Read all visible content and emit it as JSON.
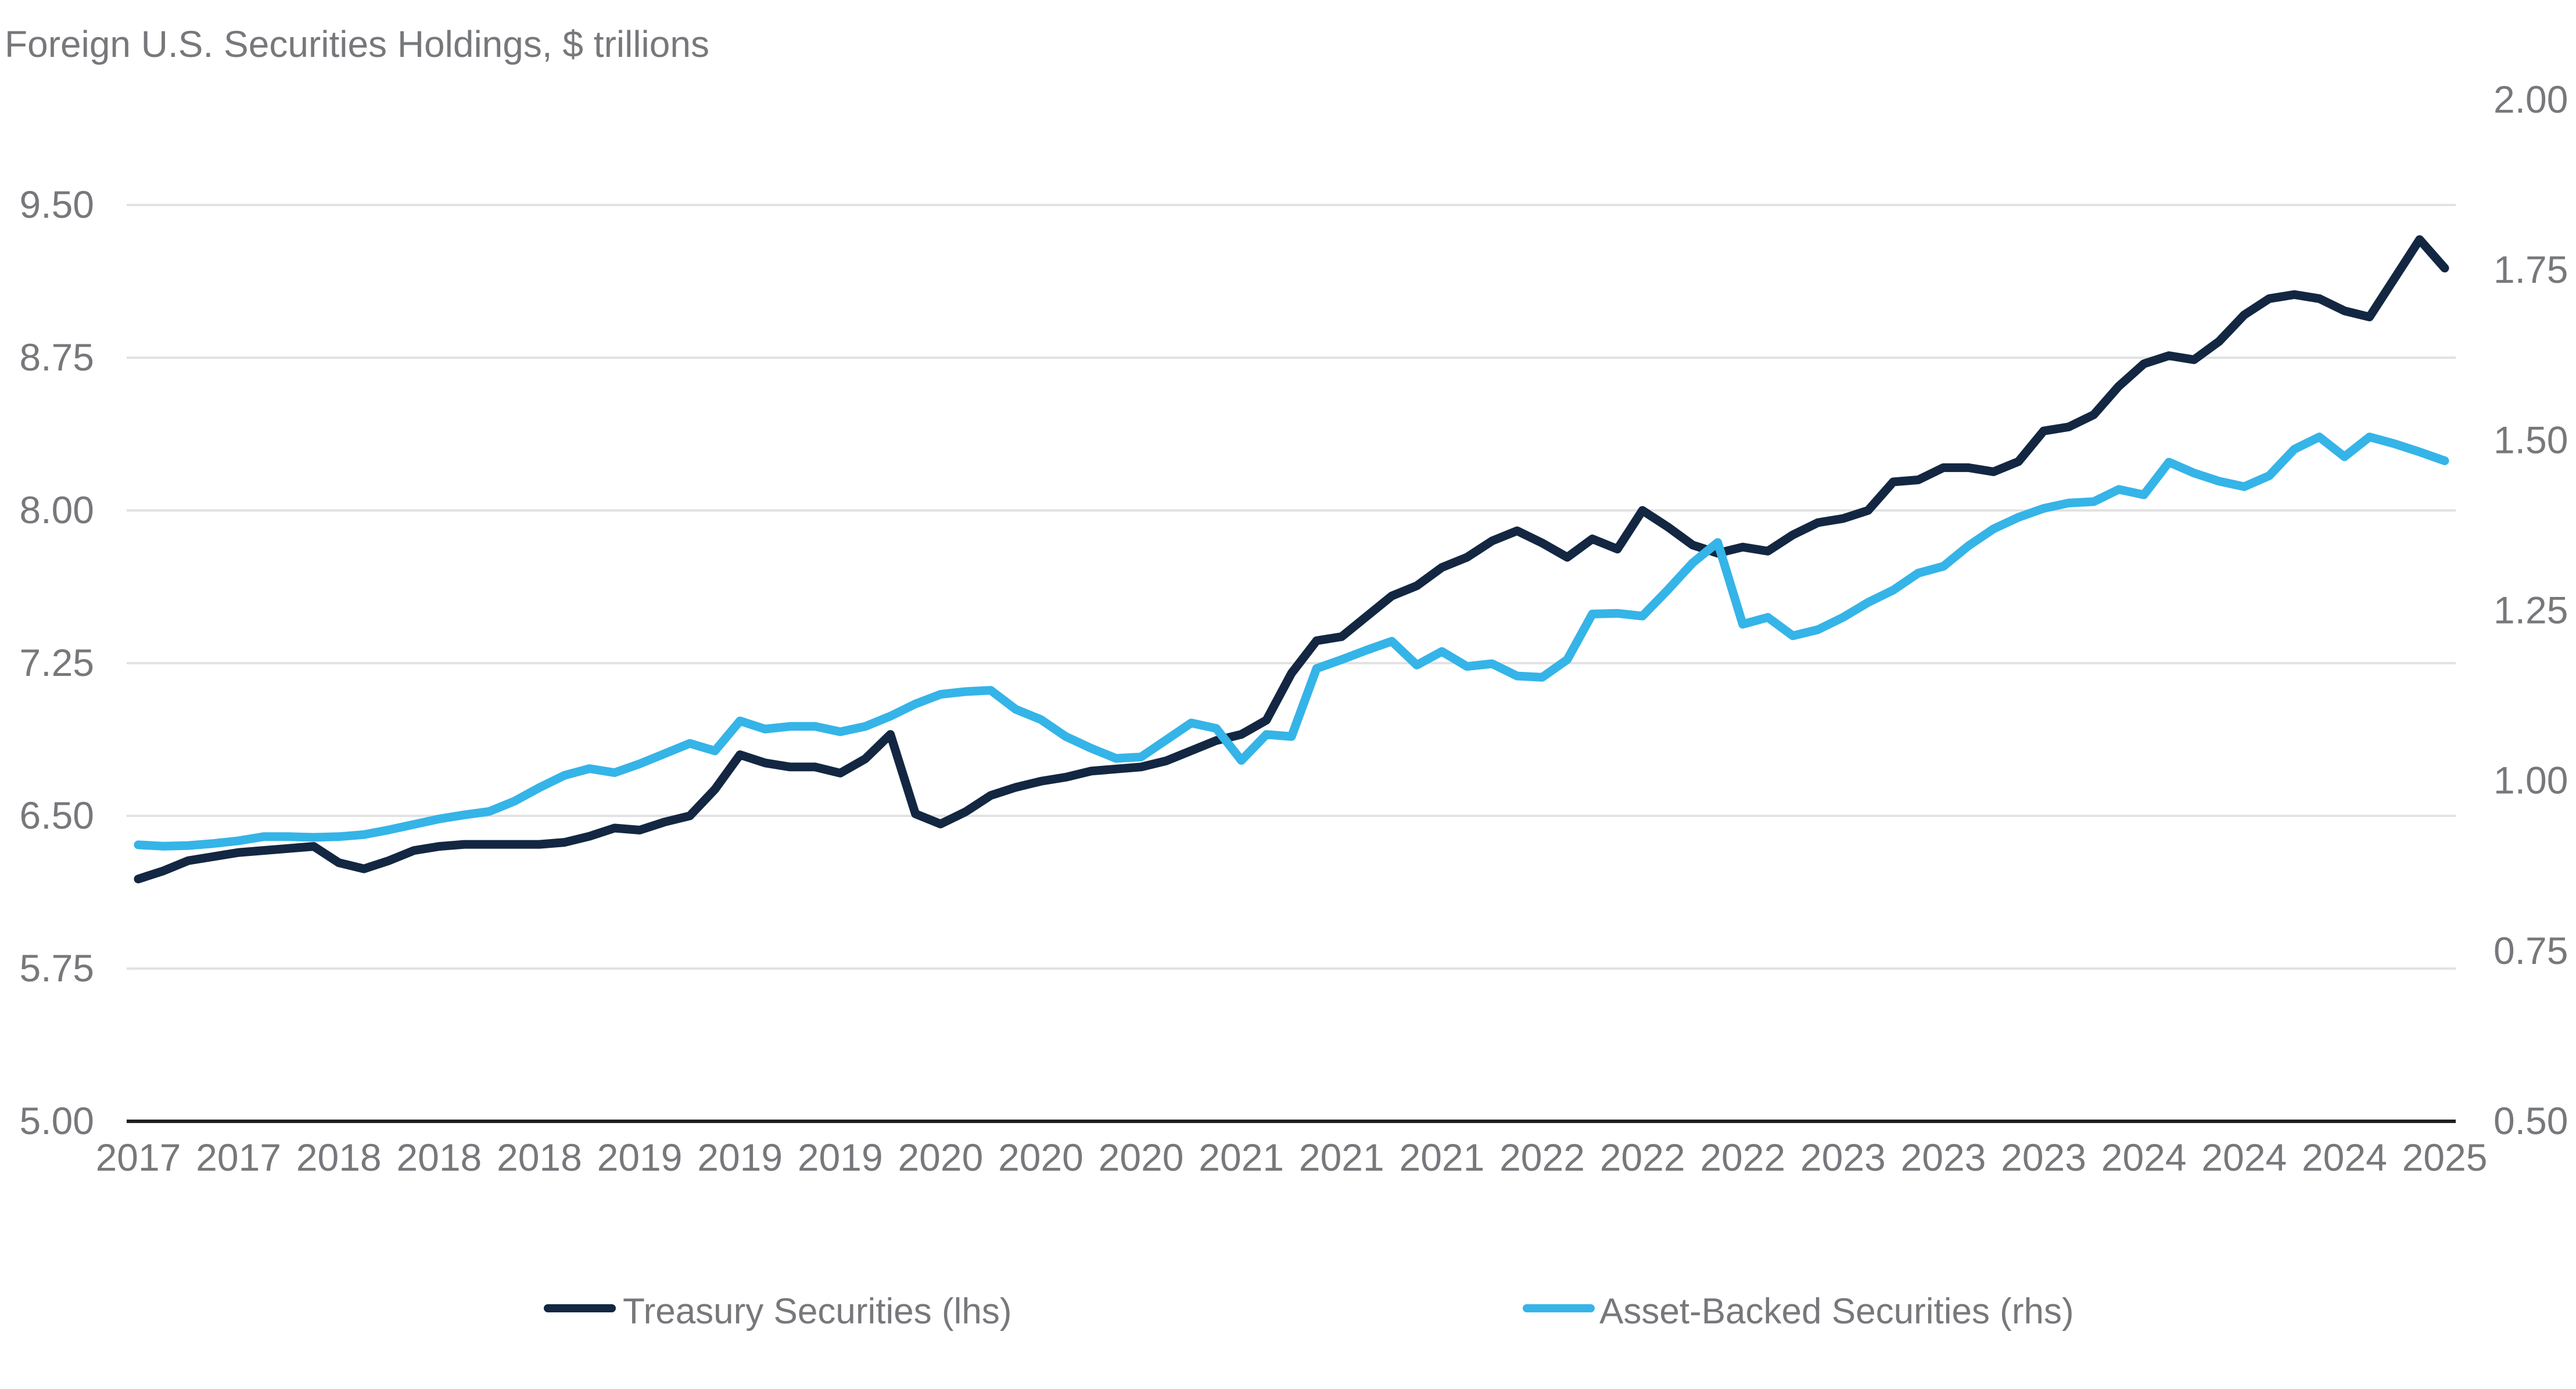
{
  "title": "Foreign U.S. Securities Holdings, $ trillions",
  "colors": {
    "treasury_line": "#132742",
    "abs_line": "#35b4e8",
    "gridline": "#e2e2e2",
    "axis_line": "#1f1f1f",
    "label_text": "#77787b",
    "background": "#ffffff"
  },
  "legend": [
    {
      "label": "Treasury Securities (lhs)",
      "color": "#132742"
    },
    {
      "label": "Asset-Backed Securities (rhs)",
      "color": "#35b4e8"
    }
  ],
  "chart_data": {
    "type": "line",
    "title": "Foreign U.S. Securities Holdings, $ trillions",
    "grid": "horizontal",
    "legend_position": "bottom",
    "x_labels": [
      "2017",
      "2017",
      "2018",
      "2018",
      "2018",
      "2019",
      "2019",
      "2019",
      "2020",
      "2020",
      "2020",
      "2021",
      "2021",
      "2021",
      "2022",
      "2022",
      "2022",
      "2023",
      "2023",
      "2023",
      "2024",
      "2024",
      "2024",
      "2025"
    ],
    "x_label_every_n_points": 4,
    "left_axis": {
      "ticks": [
        "9.50",
        "8.75",
        "8.00",
        "7.25",
        "6.50",
        "5.75",
        "5.00"
      ],
      "min": 5.0,
      "max": 9.5
    },
    "right_axis": {
      "ticks": [
        "2.00",
        "1.75",
        "1.50",
        "1.25",
        "1.00",
        "0.75",
        "0.50"
      ],
      "min": 0.5,
      "max": 2.0
    },
    "series": [
      {
        "name": "Treasury Securities (lhs)",
        "axis": "left",
        "color": "#132742",
        "values": [
          6.19,
          6.23,
          6.28,
          6.3,
          6.32,
          6.33,
          6.34,
          6.35,
          6.27,
          6.24,
          6.28,
          6.33,
          6.35,
          6.36,
          6.36,
          6.36,
          6.36,
          6.37,
          6.4,
          6.44,
          6.43,
          6.47,
          6.5,
          6.63,
          6.8,
          6.76,
          6.74,
          6.74,
          6.71,
          6.78,
          6.9,
          6.51,
          6.46,
          6.52,
          6.6,
          6.64,
          6.67,
          6.69,
          6.72,
          6.73,
          6.74,
          6.77,
          6.82,
          6.87,
          6.9,
          6.97,
          7.2,
          7.36,
          7.38,
          7.48,
          7.58,
          7.63,
          7.72,
          7.77,
          7.85,
          7.9,
          7.84,
          7.77,
          7.86,
          7.81,
          8.0,
          7.92,
          7.83,
          7.79,
          7.82,
          7.8,
          7.88,
          7.94,
          7.96,
          8.0,
          8.14,
          8.15,
          8.21,
          8.21,
          8.19,
          8.24,
          8.39,
          8.41,
          8.47,
          8.61,
          8.72,
          8.76,
          8.74,
          8.83,
          8.96,
          9.04,
          9.06,
          9.04,
          8.98,
          8.95,
          9.14,
          9.33,
          9.19
        ]
      },
      {
        "name": "Asset-Backed Securities (rhs)",
        "axis": "right",
        "color": "#35b4e8",
        "values": [
          0.906,
          0.904,
          0.905,
          0.908,
          0.912,
          0.918,
          0.918,
          0.917,
          0.918,
          0.921,
          0.928,
          0.936,
          0.944,
          0.95,
          0.955,
          0.97,
          0.99,
          1.008,
          1.018,
          1.012,
          1.025,
          1.04,
          1.055,
          1.044,
          1.088,
          1.076,
          1.08,
          1.08,
          1.072,
          1.08,
          1.095,
          1.113,
          1.127,
          1.131,
          1.133,
          1.105,
          1.09,
          1.065,
          1.048,
          1.033,
          1.035,
          1.06,
          1.085,
          1.077,
          1.03,
          1.068,
          1.065,
          1.165,
          1.178,
          1.192,
          1.205,
          1.17,
          1.19,
          1.168,
          1.172,
          1.154,
          1.152,
          1.178,
          1.245,
          1.246,
          1.242,
          1.28,
          1.32,
          1.35,
          1.23,
          1.24,
          1.213,
          1.222,
          1.24,
          1.262,
          1.28,
          1.305,
          1.315,
          1.345,
          1.37,
          1.387,
          1.4,
          1.408,
          1.41,
          1.428,
          1.42,
          1.468,
          1.452,
          1.44,
          1.432,
          1.448,
          1.487,
          1.505,
          1.476,
          1.505,
          1.495,
          1.483,
          1.47
        ]
      }
    ]
  }
}
